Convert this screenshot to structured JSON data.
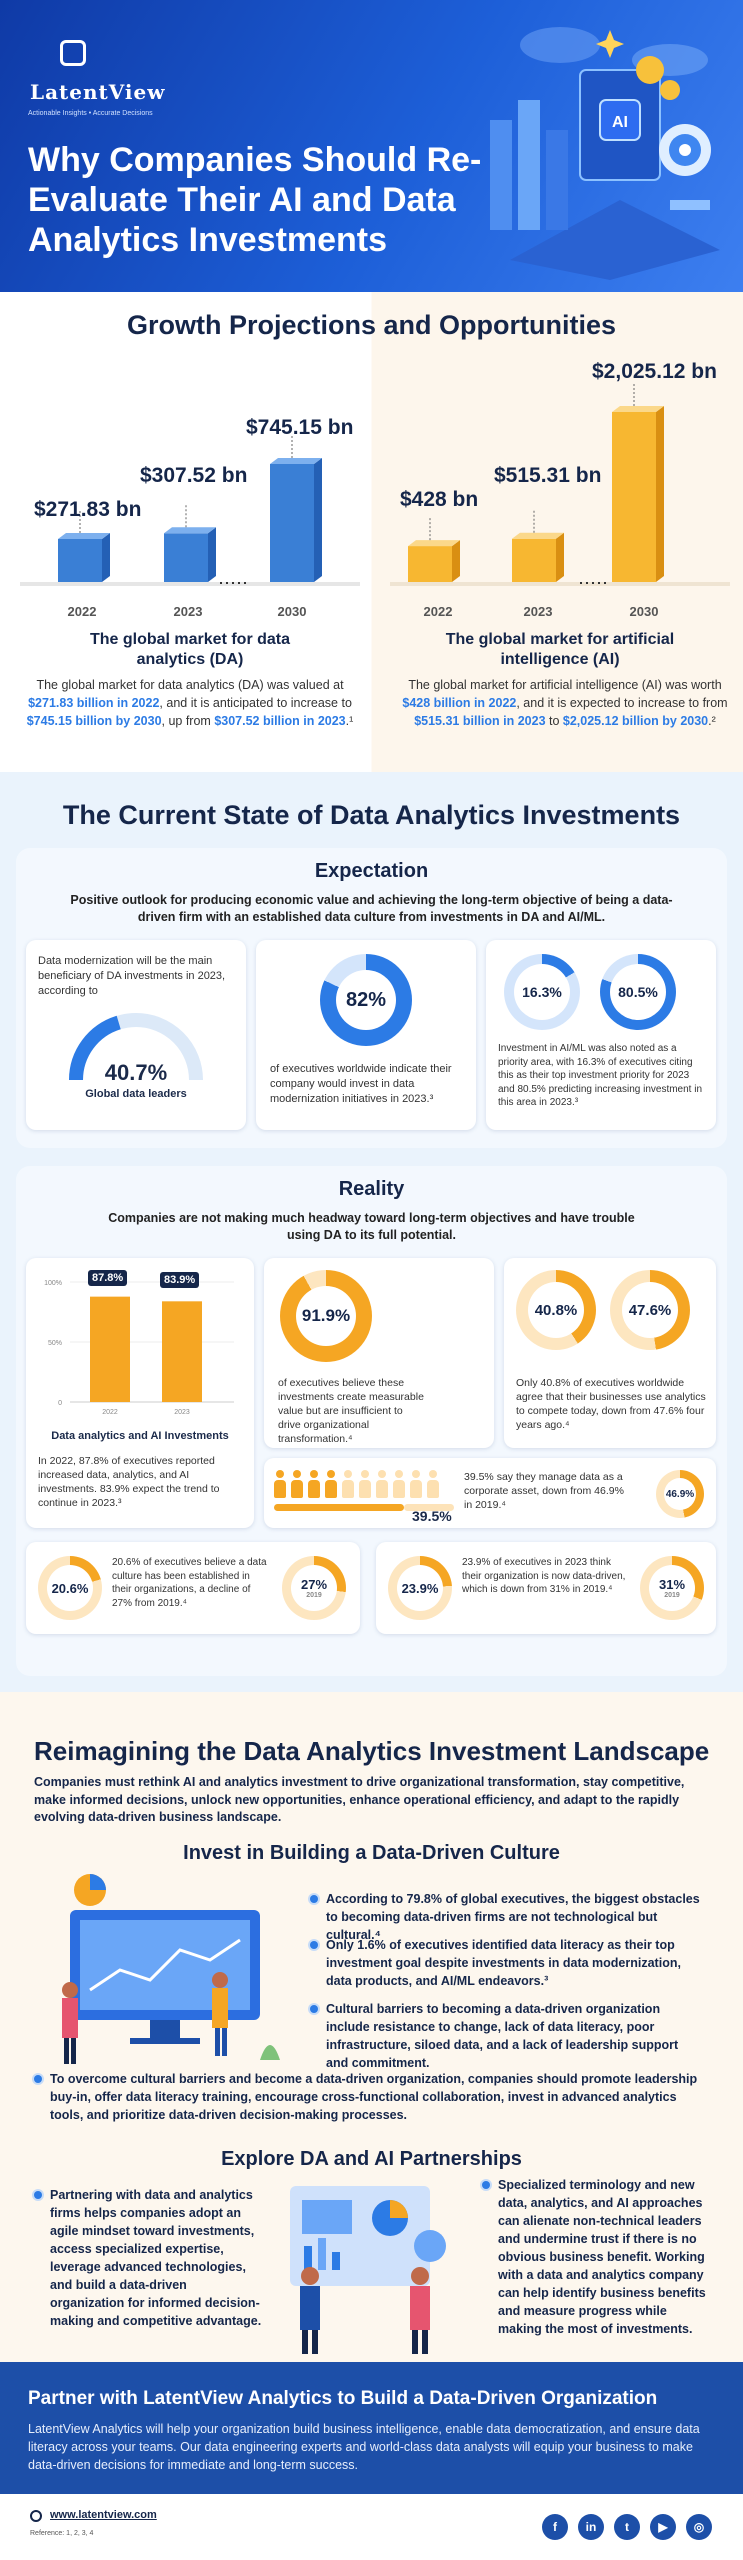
{
  "header": {
    "logo": "LatentView",
    "tagline": "Actionable Insights • Accurate Decisions",
    "title": "Why Companies Should Re-Evaluate Their AI and Data Analytics Investments",
    "ai_badge": "AI"
  },
  "growth": {
    "title": "Growth Projections and Opportunities",
    "da": {
      "bars": [
        {
          "year": "2022",
          "label": "$271.83 bn",
          "value": 271.83
        },
        {
          "year": "2023",
          "label": "$307.52 bn",
          "value": 307.52
        },
        {
          "year": "2030",
          "label": "$745.15 bn",
          "value": 745.15
        }
      ],
      "title": "The global market for data analytics (DA)",
      "text_1": "The global market for data analytics (DA) was valued at ",
      "hl_1": "$271.83 billion in 2022",
      "text_2": ", and it is anticipated to increase to ",
      "hl_2": "$745.15 billion by 2030",
      "text_3": ", up from ",
      "hl_3": "$307.52 billion in 2023",
      "text_4": ".¹"
    },
    "ai": {
      "bars": [
        {
          "year": "2022",
          "label": "$428 bn",
          "value": 428
        },
        {
          "year": "2023",
          "label": "$515.31 bn",
          "value": 515.31
        },
        {
          "year": "2030",
          "label": "$2,025.12 bn",
          "value": 2025.12
        }
      ],
      "title": "The global market for artificial intelligence (AI)",
      "text_1": "The global market for artificial intelligence (AI) was worth ",
      "hl_1": "$428 billion in 2022",
      "text_2": ", and it is expected to increase to from ",
      "hl_2": "$515.31 billion in 2023",
      "text_3": " to ",
      "hl_3": "$2,025.12 billion by 2030",
      "text_4": ".²"
    }
  },
  "state": {
    "title": "The Current State of Data Analytics Investments",
    "expectation": {
      "title": "Expectation",
      "desc": "Positive outlook for producing economic value and achieving the long-term objective of being a data-driven firm with an established data culture from investments in DA and AI/ML.",
      "card1_text": "Data modernization will be the main beneficiary of DA investments in 2023, according to",
      "card1_value": "40.7%",
      "card1_caption": "Global data leaders",
      "card2_value": "82%",
      "card2_text": "of executives worldwide indicate their company would invest in data modernization initiatives in 2023.³",
      "card3_value_a": "16.3%",
      "card3_value_b": "80.5%",
      "card3_text": "Investment in AI/ML was also noted as a priority area, with 16.3% of executives citing this as their top investment priority for 2023 and 80.5% predicting increasing investment in this area in 2023.³"
    },
    "reality": {
      "title": "Reality",
      "desc": "Companies are not making much headway toward long-term objectives and have trouble using DA to its full potential.",
      "bar_chart": {
        "y_ticks": [
          "100%",
          "50%",
          "0"
        ],
        "bars": [
          {
            "year": "2022",
            "label": "87.8%",
            "value": 87.8
          },
          {
            "year": "2023",
            "label": "83.9%",
            "value": 83.9
          }
        ],
        "title": "Data analytics and AI Investments",
        "text": "In 2022, 87.8% of executives reported increased data, analytics, and AI investments. 83.9% expect the trend to continue in 2023.³"
      },
      "card_91": {
        "value": "91.9%",
        "text": "of executives believe these investments create measurable value but are insufficient to drive organizational transformation.⁴"
      },
      "card_40": {
        "value_a": "40.8%",
        "value_b": "47.6%",
        "text": "Only 40.8% of executives worldwide agree that their businesses use analytics to compete today, down from 47.6% four years ago.⁴"
      },
      "card_39": {
        "value": "39.5%",
        "text": "39.5% say they manage data as a corporate asset, down from 46.9% in 2019.⁴",
        "prev_value": "46.9%",
        "people_filled": 4,
        "people_total": 10
      },
      "card_20": {
        "value": "20.6%",
        "text": "20.6% of executives believe a data culture has been established in their organizations, a decline of 27% from 2019.⁴",
        "prev_value": "27%",
        "prev_year": "2019"
      },
      "card_23": {
        "value": "23.9%",
        "text": "23.9% of executives in 2023 think their organization is now data-driven, which is down from 31% in 2019.⁴",
        "prev_value": "31%",
        "prev_year": "2019"
      }
    }
  },
  "reimagining": {
    "title": "Reimagining the Data Analytics Investment Landscape",
    "desc": "Companies must rethink AI and analytics investment to drive organizational transformation, stay competitive, make informed decisions, unlock new opportunities, enhance operational efficiency, and adapt to the rapidly evolving data-driven business landscape.",
    "culture": {
      "title": "Invest in Building a Data-Driven Culture",
      "bullets": [
        "According to 79.8% of global executives, the biggest obstacles to becoming data-driven firms are not technological but cultural.⁴",
        "Only 1.6% of executives identified data literacy as their top investment goal despite investments in data modernization, data products, and AI/ML endeavors.³",
        "Cultural barriers to becoming a data-driven organization include resistance to change, lack of data literacy, poor infrastructure, siloed data, and a lack of leadership support and commitment."
      ],
      "wide_bullet": "To overcome cultural barriers and become a data-driven organization, companies should promote leadership buy-in, offer data literacy training, encourage cross-functional collaboration, invest in advanced analytics tools, and prioritize data-driven decision-making processes."
    },
    "partnerships": {
      "title": "Explore DA and AI Partnerships",
      "left": "Partnering with data and analytics firms helps companies adopt an agile mindset toward investments, access specialized expertise, leverage advanced technologies, and build a data-driven organization for informed decision-making and competitive advantage.",
      "right": "Specialized terminology and new data, analytics, and AI approaches can alienate non-technical leaders and undermine trust if there is no obvious business benefit. Working with a data and analytics company can help identify business benefits and measure progress while making the most of investments."
    }
  },
  "partner": {
    "title": "Partner with LatentView Analytics to Build a Data-Driven Organization",
    "text": "LatentView Analytics will help your organization build business intelligence, enable data democratization, and ensure data literacy across your teams. Our data engineering experts and world-class data analysts will equip your business to make data-driven decisions for immediate and long-term success."
  },
  "footer": {
    "url": "www.latentview.com",
    "references": "Reference: 1, 2, 3, 4",
    "social": [
      "f",
      "in",
      "t",
      "▶",
      "◎"
    ]
  },
  "colors": {
    "brand_blue": "#1d4fa8",
    "da_blue": "#3a7fd5",
    "ai_orange": "#f5a623",
    "accent": "#2c7be5"
  }
}
